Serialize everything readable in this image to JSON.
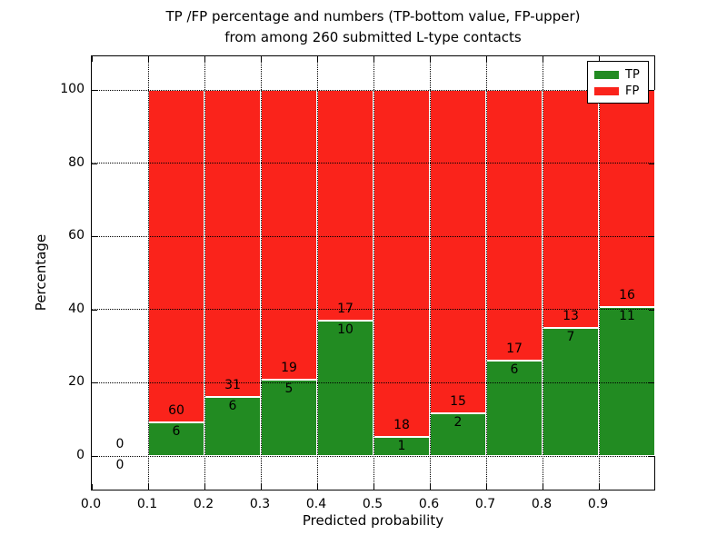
{
  "figure": {
    "title_line1": "TP /FP percentage and numbers (TP-bottom value, FP-upper)",
    "title_line2": "from among 260 submitted L-type contacts"
  },
  "chart_data": {
    "type": "bar",
    "stacked": true,
    "title": "TP /FP percentage and numbers (TP-bottom value, FP-upper) from among 260 submitted L-type contacts",
    "xlabel": "Predicted probability",
    "ylabel": "Percentage",
    "total_contacts": 260,
    "categories": [
      "0.0-0.1",
      "0.1-0.2",
      "0.2-0.3",
      "0.3-0.4",
      "0.4-0.5",
      "0.5-0.6",
      "0.6-0.7",
      "0.7-0.8",
      "0.8-0.9",
      "0.9-1.0"
    ],
    "series": [
      {
        "name": "TP",
        "color": "#228b22",
        "counts": [
          0,
          6,
          6,
          5,
          10,
          1,
          2,
          6,
          7,
          11
        ]
      },
      {
        "name": "FP",
        "color": "#fa231b",
        "counts": [
          0,
          60,
          31,
          19,
          17,
          18,
          15,
          17,
          13,
          16
        ]
      }
    ],
    "bar_height_rule": "green segment = TP/(TP+FP)*100, red segment stacked to 100",
    "x_tick_labels": [
      "0.0",
      "0.1",
      "0.2",
      "0.3",
      "0.4",
      "0.5",
      "0.6",
      "0.7",
      "0.8",
      "0.9"
    ],
    "y_tick_labels": [
      "0",
      "20",
      "40",
      "60",
      "80",
      "100"
    ],
    "y_tick_values": [
      0,
      20,
      40,
      60,
      80,
      100
    ],
    "xlim": [
      0.0,
      1.0
    ],
    "ylim": [
      -10,
      110
    ],
    "grid": "dotted",
    "legend_position": "upper right",
    "text_color": "#000000",
    "background_color": "#ffffff"
  }
}
